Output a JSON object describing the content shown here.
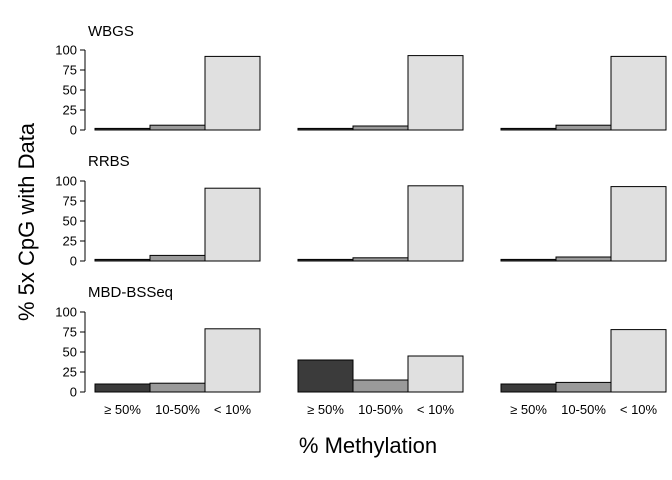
{
  "chart_data": {
    "type": "bar",
    "title": "",
    "xlabel": "% Methylation",
    "ylabel": "% 5x CpG with Data",
    "categories": [
      "≥ 50%",
      "10-50%",
      "< 10%"
    ],
    "yticks": [
      0,
      25,
      50,
      75,
      100
    ],
    "ylim": [
      0,
      100
    ],
    "grid": false,
    "colors": [
      "#3b3b3b",
      "#9a9a9a",
      "#e0e0e0"
    ],
    "rows": [
      {
        "name": "WBGS",
        "panels": [
          {
            "values": [
              2,
              6,
              92
            ]
          },
          {
            "values": [
              2,
              5,
              93
            ]
          },
          {
            "values": [
              2,
              6,
              92
            ]
          }
        ]
      },
      {
        "name": "RRBS",
        "panels": [
          {
            "values": [
              2,
              7,
              91
            ]
          },
          {
            "values": [
              2,
              4,
              94
            ]
          },
          {
            "values": [
              2,
              5,
              93
            ]
          }
        ]
      },
      {
        "name": "MBD-BSSeq",
        "panels": [
          {
            "values": [
              10,
              11,
              79
            ]
          },
          {
            "values": [
              40,
              15,
              45
            ]
          },
          {
            "values": [
              10,
              12,
              78
            ]
          }
        ]
      }
    ]
  }
}
